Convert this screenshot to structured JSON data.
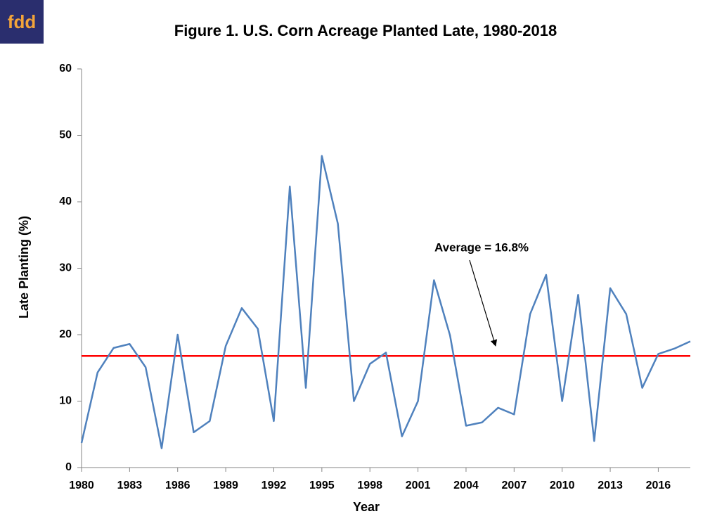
{
  "logo": "fdd",
  "chart_data": {
    "type": "line",
    "title": "Figure 1. U.S. Corn Acreage Planted Late, 1980-2018",
    "x_label": "Year",
    "y_label": "Late Planting (%)",
    "x": [
      1980,
      1981,
      1982,
      1983,
      1984,
      1985,
      1986,
      1987,
      1988,
      1989,
      1990,
      1991,
      1992,
      1993,
      1994,
      1995,
      1996,
      1997,
      1998,
      1999,
      2000,
      2001,
      2002,
      2003,
      2004,
      2005,
      2006,
      2007,
      2008,
      2009,
      2010,
      2011,
      2012,
      2013,
      2014,
      2015,
      2016,
      2017,
      2018
    ],
    "series": [
      {
        "name": "Late Planting",
        "color": "#4f81bd",
        "values": [
          3.7,
          14.3,
          18.0,
          18.6,
          15.1,
          2.9,
          20.0,
          5.3,
          7.0,
          18.3,
          24.0,
          20.9,
          7.0,
          42.3,
          12.0,
          46.9,
          36.7,
          10.0,
          15.6,
          17.3,
          4.7,
          10.0,
          28.2,
          19.9,
          6.3,
          6.8,
          9.0,
          8.0,
          23.1,
          29.0,
          10.0,
          26.0,
          4.0,
          27.0,
          23.1,
          12.0,
          17.1,
          17.9,
          19.0
        ]
      }
    ],
    "average": {
      "value": 16.8,
      "label": "Average = 16.8%",
      "color": "#ff0000"
    },
    "xlim": [
      1980,
      2018
    ],
    "xticks": [
      1980,
      1983,
      1986,
      1989,
      1992,
      1995,
      1998,
      2001,
      2004,
      2007,
      2010,
      2013,
      2016
    ],
    "ylim": [
      0,
      60
    ],
    "yticks": [
      0,
      10,
      20,
      30,
      40,
      50,
      60
    ],
    "grid": false
  }
}
